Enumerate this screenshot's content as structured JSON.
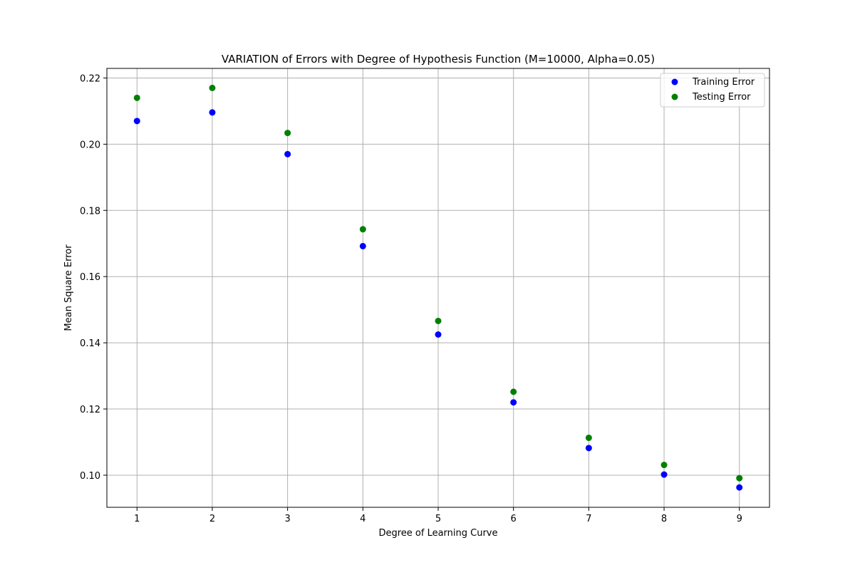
{
  "chart_data": {
    "type": "scatter",
    "title": "VARIATION of Errors with Degree of Hypothesis Function (M=10000, Alpha=0.05)",
    "xlabel": "Degree of Learning Curve",
    "ylabel": "Mean Square Error",
    "x": [
      1,
      2,
      3,
      4,
      5,
      6,
      7,
      8,
      9
    ],
    "xticks": [
      "1",
      "2",
      "3",
      "4",
      "5",
      "6",
      "7",
      "8",
      "9"
    ],
    "yticks": [
      "0.10",
      "0.12",
      "0.14",
      "0.16",
      "0.18",
      "0.20",
      "0.22"
    ],
    "xlim": [
      0.6,
      9.4
    ],
    "ylim": [
      0.0903,
      0.2229
    ],
    "grid": true,
    "legend_position": "top-right",
    "series": [
      {
        "name": "Training Error",
        "color": "#0000ff",
        "values": [
          0.207,
          0.2096,
          0.197,
          0.1692,
          0.1425,
          0.122,
          0.1082,
          0.1002,
          0.0963
        ]
      },
      {
        "name": "Testing Error",
        "color": "#008000",
        "values": [
          0.214,
          0.217,
          0.2034,
          0.1743,
          0.1466,
          0.1252,
          0.1113,
          0.1031,
          0.0991
        ]
      }
    ]
  }
}
